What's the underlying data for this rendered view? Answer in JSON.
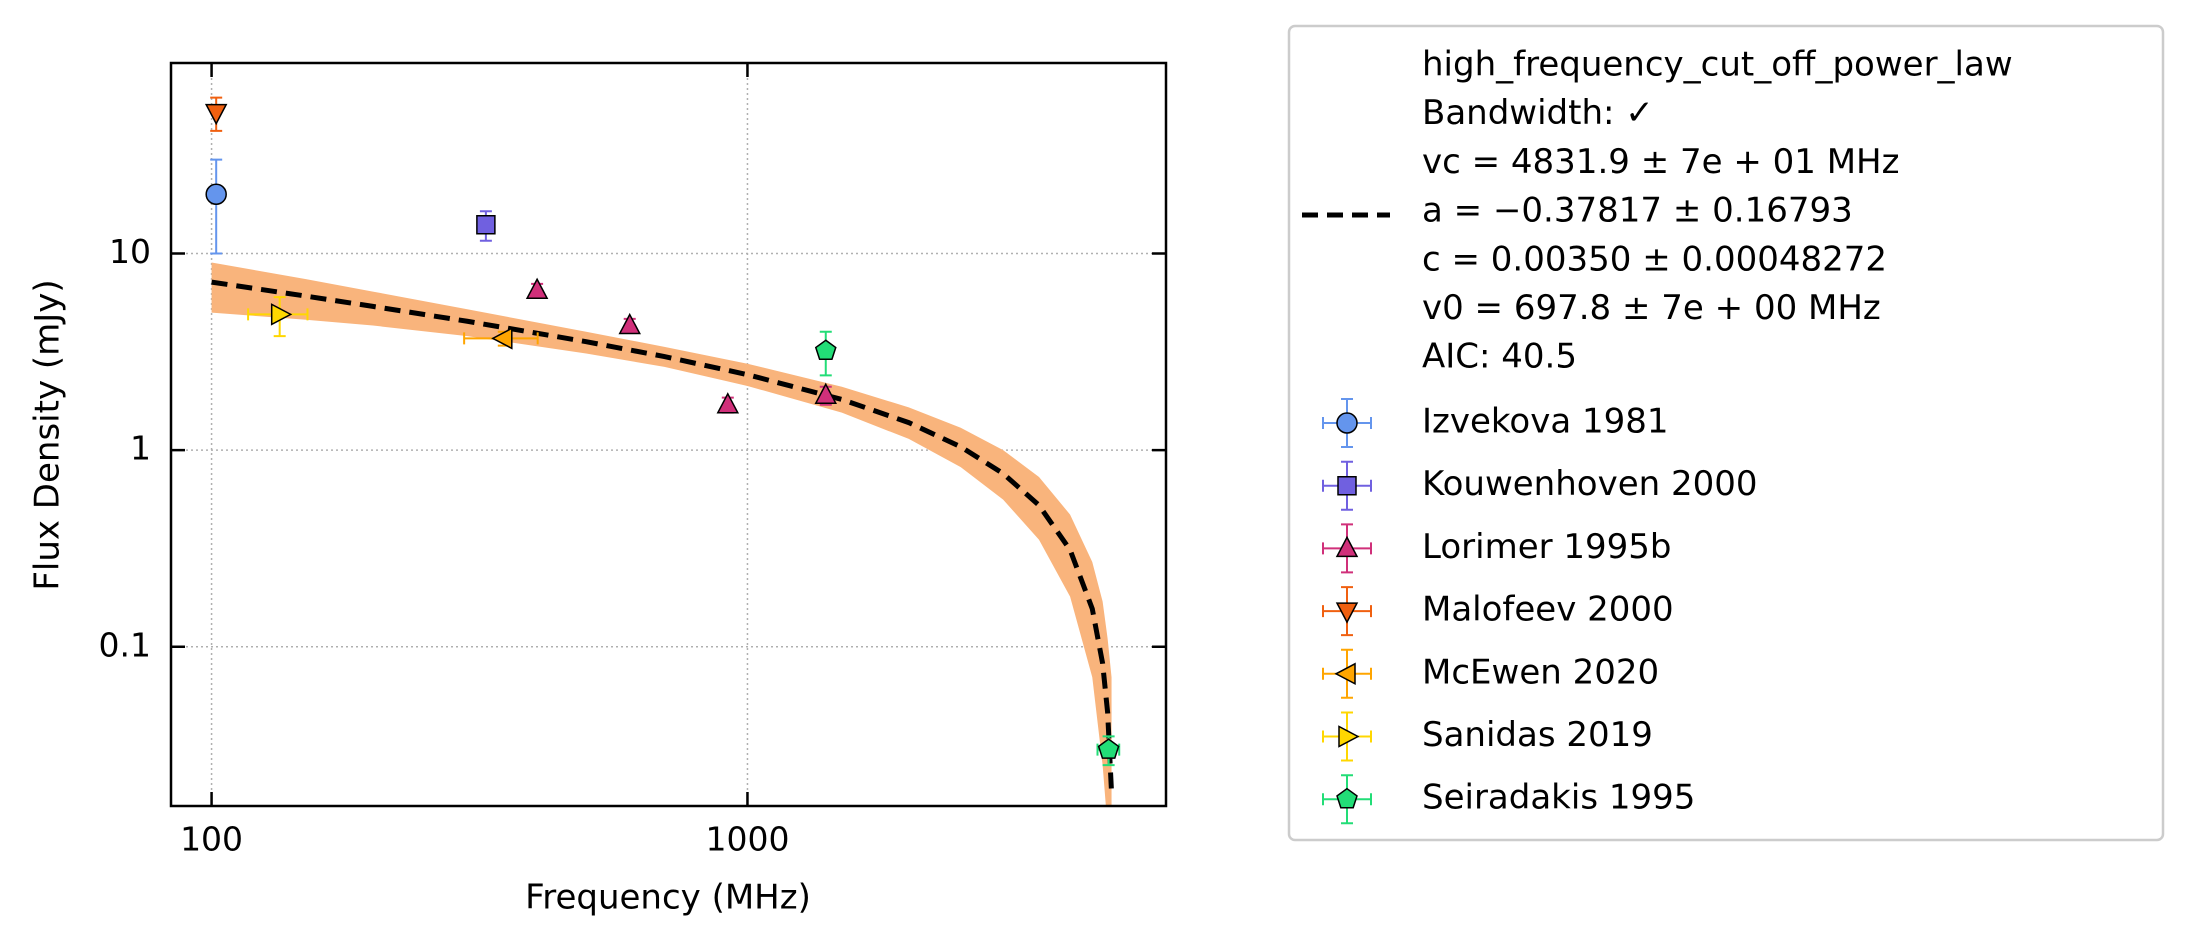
{
  "chart_data": {
    "type": "scatter",
    "x_label": "Frequency (MHz)",
    "y_label": "Flux Density (mJy)",
    "xscale": "log",
    "yscale": "log",
    "xlim": [
      84,
      6040
    ],
    "ylim": [
      0.0155,
      93
    ],
    "xticks": [
      100,
      1000
    ],
    "yticks": [
      0.1,
      1,
      10
    ],
    "grid": true,
    "legend": "outside right",
    "fit": {
      "label_lines": [
        "high_frequency_cut_off_power_law",
        "Bandwidth: ✓",
        "vc = 4831.9 ± 7e + 01 MHz",
        "a = −0.37817 ± 0.16793",
        "c = 0.00350 ± 0.00048272",
        "v0 = 697.8 ± 7e + 00 MHz",
        "AIC: 40.5"
      ],
      "color": "#000000",
      "band_color": "#f9b47c",
      "x": [
        100,
        150,
        200,
        300,
        500,
        700,
        1000,
        1500,
        2000,
        2500,
        3000,
        3500,
        4000,
        4400,
        4600,
        4700,
        4780
      ],
      "values": [
        7.15,
        6.07,
        5.38,
        4.52,
        3.56,
        2.99,
        2.42,
        1.81,
        1.38,
        1.04,
        0.76,
        0.524,
        0.311,
        0.156,
        0.0823,
        0.0464,
        0.0181
      ],
      "upper": [
        9.0,
        7.4,
        6.4,
        5.2,
        4.0,
        3.35,
        2.75,
        2.1,
        1.65,
        1.3,
        1.0,
        0.73,
        0.47,
        0.27,
        0.17,
        0.11,
        0.07
      ],
      "lower": [
        5.0,
        4.6,
        4.3,
        3.8,
        3.1,
        2.65,
        2.12,
        1.55,
        1.14,
        0.82,
        0.56,
        0.35,
        0.18,
        0.07,
        0.025,
        0.012,
        0.003
      ]
    },
    "series": [
      {
        "name": "Izvekova 1981",
        "color": "#6495ed",
        "marker": "o",
        "x": [
          102
        ],
        "values": [
          20
        ],
        "yerr": [
          10
        ],
        "xerr": [
          null
        ]
      },
      {
        "name": "Kouwenhoven 2000",
        "color": "#7060e0",
        "marker": "s",
        "x": [
          325
        ],
        "values": [
          14
        ],
        "yerr": [
          2.4
        ],
        "xerr": [
          null
        ]
      },
      {
        "name": "Lorimer 1995b",
        "color": "#d0307a",
        "marker": "^",
        "x": [
          405,
          603,
          919,
          1400
        ],
        "values": [
          6.5,
          4.3,
          1.7,
          1.9
        ],
        "yerr": [
          0.5,
          0.35,
          0.15,
          0.2
        ],
        "xerr": [
          null,
          null,
          null,
          null
        ]
      },
      {
        "name": "Malofeev 2000",
        "color": "#f06010",
        "marker": "v",
        "x": [
          102
        ],
        "values": [
          52
        ],
        "yerr": [
          10
        ],
        "xerr": [
          null
        ]
      },
      {
        "name": "McEwen 2020",
        "color": "#ffa500",
        "marker": "<",
        "x": [
          351
        ],
        "values": [
          3.7
        ],
        "yerr": [
          0.3
        ],
        "xerr": [
          55
        ]
      },
      {
        "name": "Sanidas 2019",
        "color": "#ffd700",
        "marker": ">",
        "x": [
          134
        ],
        "values": [
          4.9
        ],
        "yerr": [
          1.1
        ],
        "xerr": [
          17
        ]
      },
      {
        "name": "Seiradakis 1995",
        "color": "#22dd77",
        "marker": "p",
        "x": [
          1400,
          4720
        ],
        "values": [
          3.2,
          0.03
        ],
        "yerr": [
          0.8,
          0.005
        ],
        "xerr": [
          null,
          220
        ]
      }
    ]
  }
}
